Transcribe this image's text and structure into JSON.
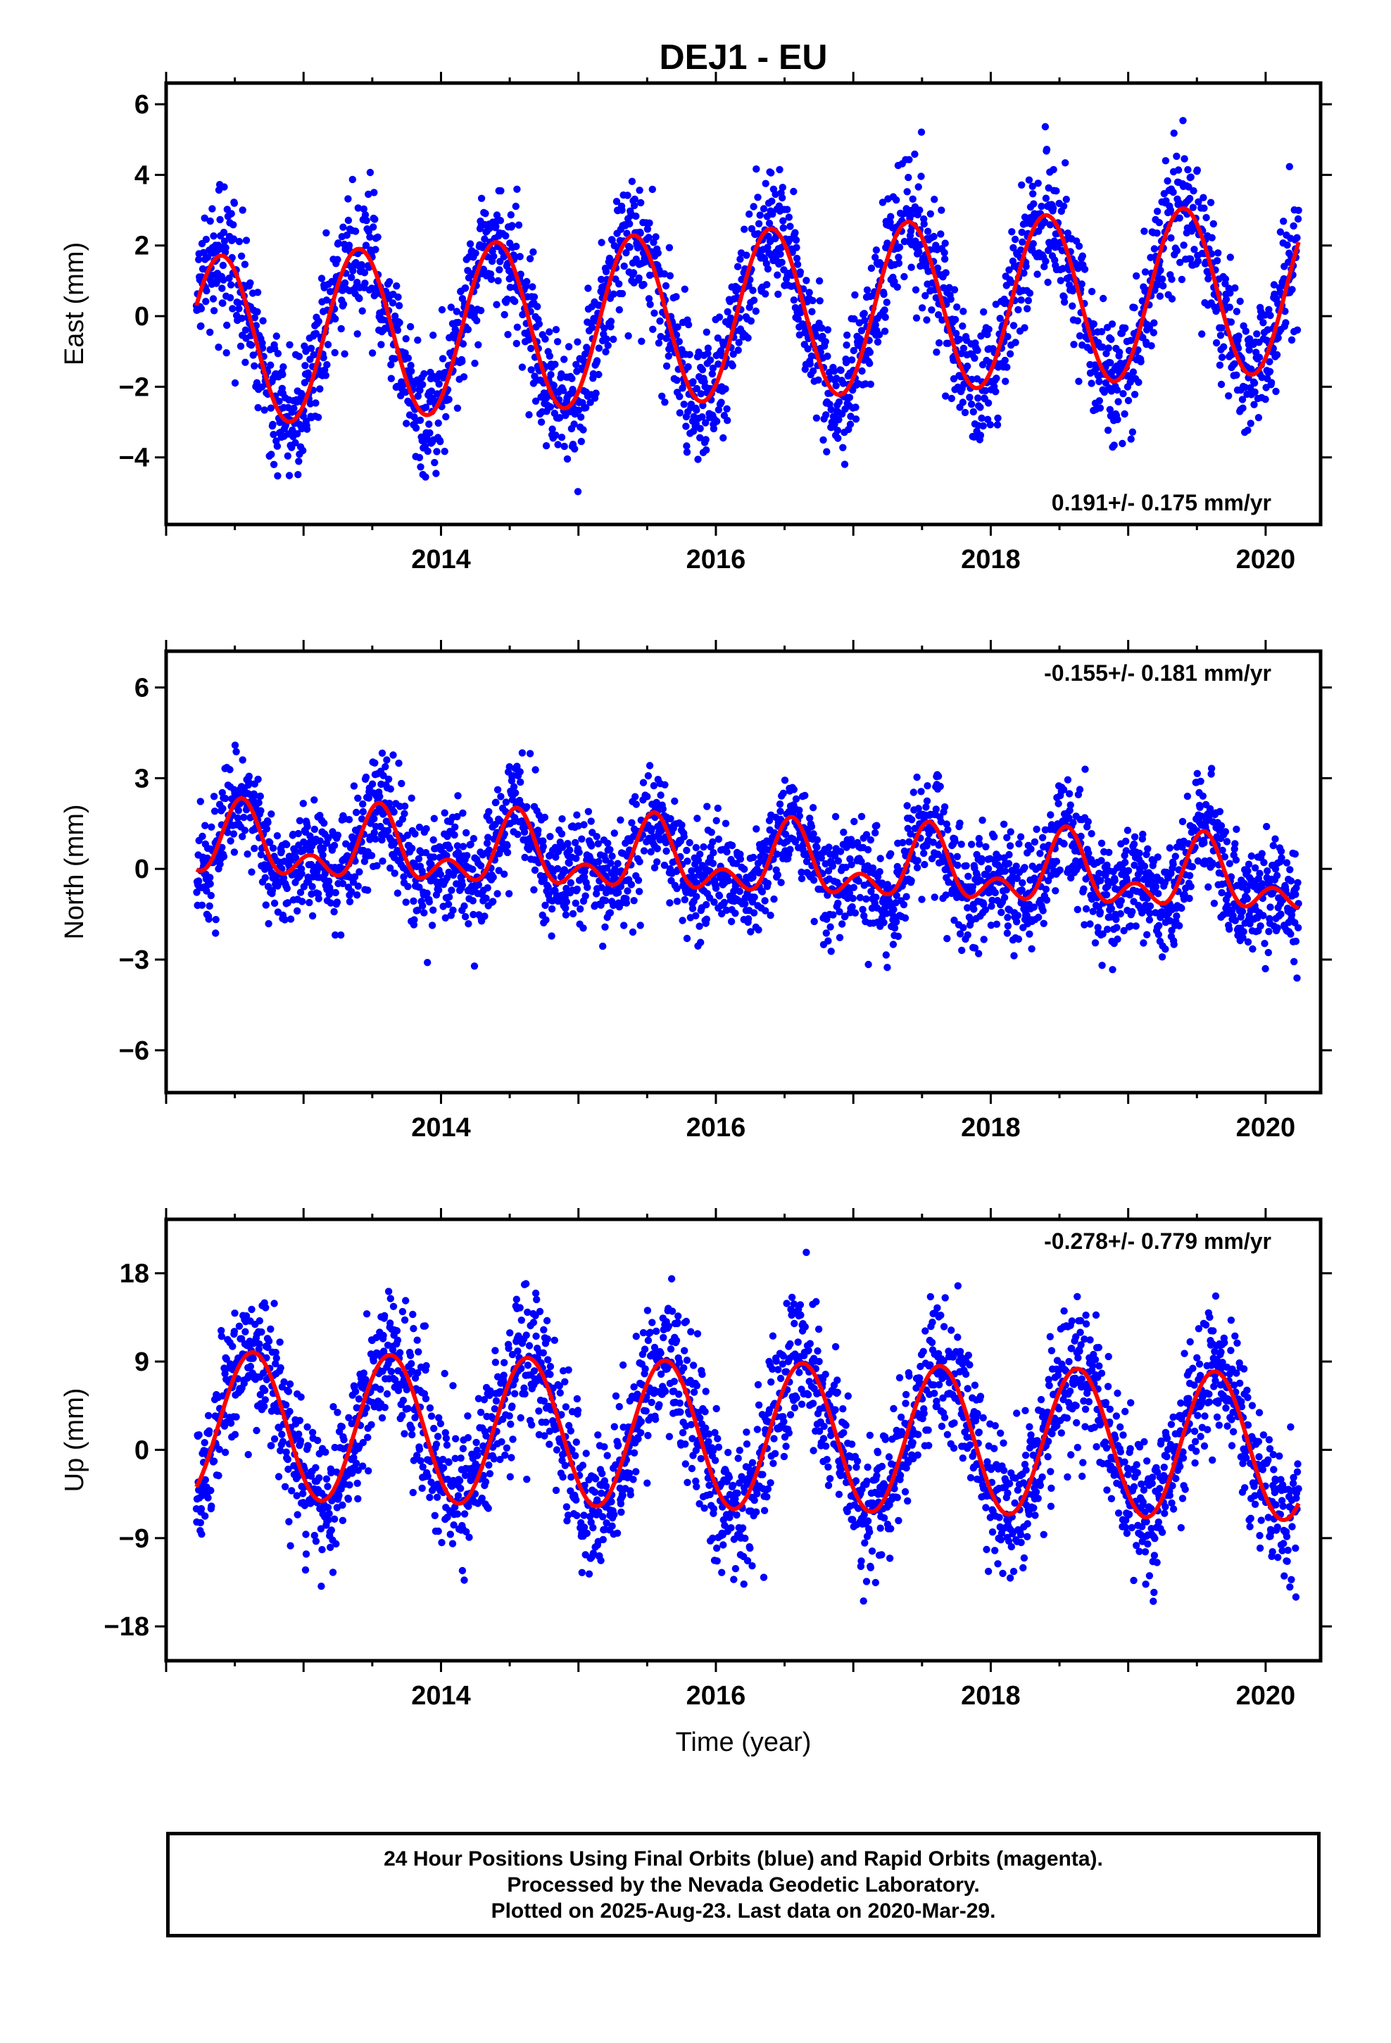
{
  "figure_title": "DEJ1 - EU",
  "x_axis_label": "Time (year)",
  "caption_lines": [
    "24 Hour Positions Using Final Orbits (blue) and Rapid Orbits (magenta).",
    "Processed by the Nevada Geodetic Laboratory.",
    "Plotted on 2025-Aug-23. Last data on 2020-Mar-29."
  ],
  "colors": {
    "final_orbits": "#0000ff",
    "model": "#ff0000",
    "frame": "#000000"
  },
  "chart_data": [
    {
      "type": "scatter",
      "panel": "east",
      "ylabel": "East (mm)",
      "rate_text": "0.191+/- 0.175 mm/yr",
      "rate_position": "bottom-right",
      "xlim": [
        2012.0,
        2020.4
      ],
      "ylim": [
        -5.9,
        6.6
      ],
      "x_ticks": [
        2014,
        2016,
        2018,
        2020
      ],
      "x_tick_labels": [
        "2014",
        "2016",
        "2018",
        "2020"
      ],
      "y_ticks": [
        -4,
        -2,
        0,
        2,
        4,
        6
      ],
      "y_tick_labels": [
        "−4",
        "−2",
        "0",
        "2",
        "4",
        "6"
      ],
      "grid": false,
      "data_start": 2012.22,
      "data_end": 2020.24,
      "seasonal_model": {
        "offset": 0.0,
        "trend_per_year": 0.191,
        "annual_amplitude": 2.4,
        "annual_peak_phase": 0.4,
        "semiannual_amplitude": 0.0,
        "semiannual_peak_phase": 0.0,
        "scatter_sd": 0.9
      },
      "series": [
        {
          "name": "Final Orbits",
          "color": "#0000ff",
          "markers": true
        },
        {
          "name": "Model",
          "color": "#ff0000",
          "line": true
        }
      ]
    },
    {
      "type": "scatter",
      "panel": "north",
      "ylabel": "North (mm)",
      "rate_text": "-0.155+/- 0.181 mm/yr",
      "rate_position": "top-right",
      "xlim": [
        2012.0,
        2020.4
      ],
      "ylim": [
        -7.4,
        7.2
      ],
      "x_ticks": [
        2014,
        2016,
        2018,
        2020
      ],
      "x_tick_labels": [
        "2014",
        "2016",
        "2018",
        "2020"
      ],
      "y_ticks": [
        -6,
        -3,
        0,
        3,
        6
      ],
      "y_tick_labels": [
        "−6",
        "−3",
        "0",
        "3",
        "6"
      ],
      "grid": false,
      "data_start": 2012.22,
      "data_end": 2020.24,
      "seasonal_model": {
        "offset": 0.2,
        "trend_per_year": -0.155,
        "annual_amplitude": 0.9,
        "annual_peak_phase": 0.55,
        "semiannual_amplitude": 0.7,
        "semiannual_peak_phase": 0.05,
        "scatter_sd": 0.9
      },
      "series": [
        {
          "name": "Final Orbits",
          "color": "#0000ff",
          "markers": true
        },
        {
          "name": "Model",
          "color": "#ff0000",
          "line": true
        }
      ]
    },
    {
      "type": "scatter",
      "panel": "up",
      "ylabel": "Up (mm)",
      "rate_text": "-0.278+/- 0.779 mm/yr",
      "rate_position": "top-right",
      "xlim": [
        2012.0,
        2020.4
      ],
      "ylim": [
        -21.5,
        23.5
      ],
      "x_ticks": [
        2014,
        2016,
        2018,
        2020
      ],
      "x_tick_labels": [
        "2014",
        "2016",
        "2018",
        "2020"
      ],
      "y_ticks": [
        -18,
        -9,
        0,
        9,
        18
      ],
      "y_tick_labels": [
        "−18",
        "−9",
        "0",
        "9",
        "18"
      ],
      "grid": false,
      "data_start": 2012.22,
      "data_end": 2020.24,
      "seasonal_model": {
        "offset": 1.5,
        "trend_per_year": -0.278,
        "annual_amplitude": 7.5,
        "annual_peak_phase": 0.63,
        "semiannual_amplitude": 0.0,
        "semiannual_peak_phase": 0.0,
        "scatter_sd": 3.6
      },
      "series": [
        {
          "name": "Final Orbits",
          "color": "#0000ff",
          "markers": true
        },
        {
          "name": "Model",
          "color": "#ff0000",
          "line": true
        }
      ]
    }
  ]
}
